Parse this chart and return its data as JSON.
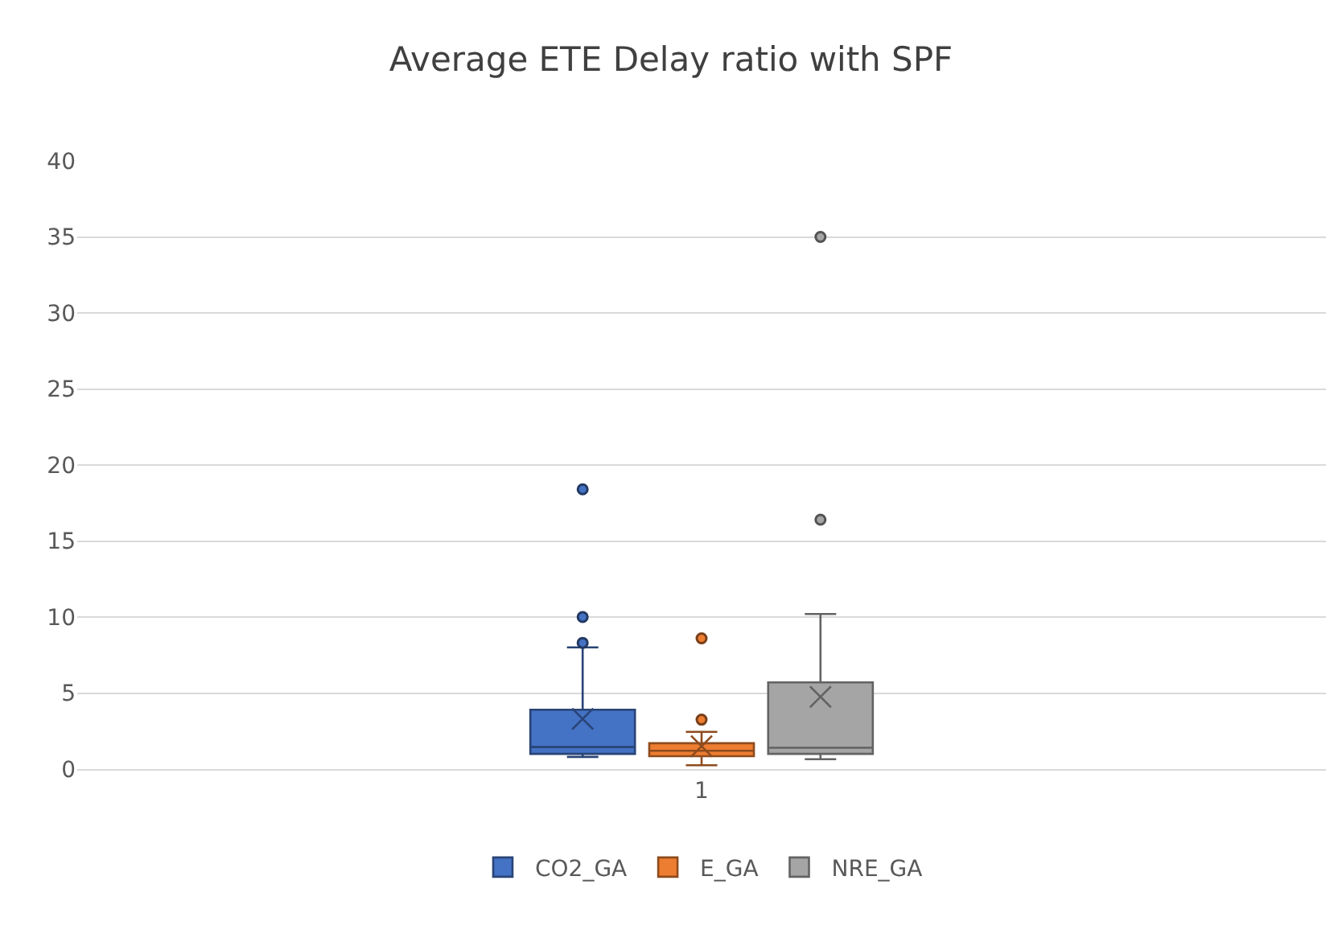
{
  "chart_data": {
    "type": "box",
    "title": "Average ETE Delay ratio with SPF",
    "categories": [
      "1"
    ],
    "series": [
      {
        "name": "CO2_GA",
        "color": "#4472c4",
        "boxes": [
          {
            "low": 0.8,
            "q1": 1.0,
            "median": 1.45,
            "q3": 3.9,
            "high": 8.0,
            "mean": 3.3,
            "outliers": [
              8.3,
              10.0,
              18.4
            ]
          }
        ]
      },
      {
        "name": "E_GA",
        "color": "#ed7d31",
        "boxes": [
          {
            "low": 0.25,
            "q1": 0.85,
            "median": 1.2,
            "q3": 1.7,
            "high": 2.45,
            "mean": 1.5,
            "outliers": [
              3.25,
              8.6
            ]
          }
        ]
      },
      {
        "name": "NRE_GA",
        "color": "#a5a5a5",
        "boxes": [
          {
            "low": 0.65,
            "q1": 1.0,
            "median": 1.4,
            "q3": 5.7,
            "high": 10.2,
            "mean": 4.75,
            "outliers": [
              16.4,
              35.0
            ]
          }
        ]
      }
    ],
    "ylim": [
      0,
      40
    ],
    "yticks": [
      0,
      5,
      10,
      15,
      20,
      25,
      30,
      35,
      40
    ],
    "grid": "y",
    "legend": "bottom"
  }
}
